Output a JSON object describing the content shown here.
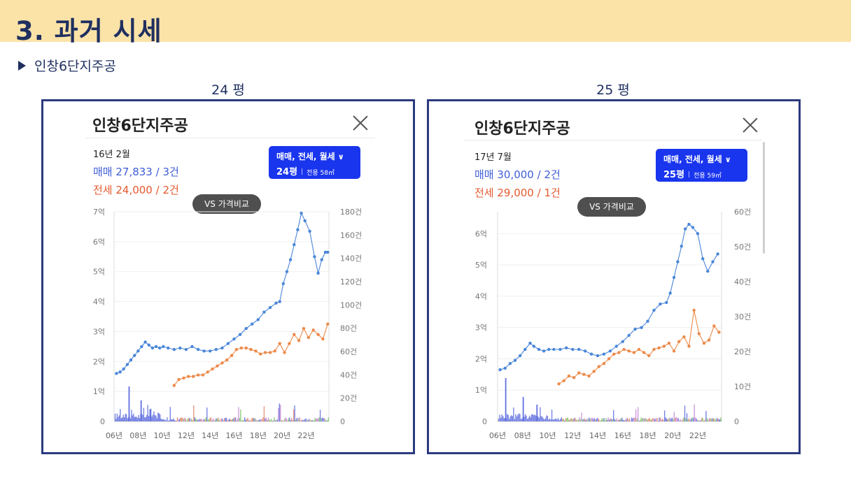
{
  "slide": {
    "title": "3. 과거 시세",
    "section_label": "인창6단지주공"
  },
  "panels": [
    {
      "pyeong_label": "24 평",
      "name": "인창6단지주공",
      "selected_date": "16년 2월",
      "sale_line": "매매 27,833 / 3건",
      "jeonse_line": "전세 24,000 / 2건",
      "filter": {
        "types": "매매, 전세, 월세",
        "pyeong": "24평",
        "area": "전용 58㎡"
      },
      "compare_button": "VS 가격비교"
    },
    {
      "pyeong_label": "25 평",
      "name": "인창6단지주공",
      "selected_date": "17년 7월",
      "sale_line": "매매 30,000 / 2건",
      "jeonse_line": "전세 29,000 / 1건",
      "filter": {
        "types": "매매, 전세, 월세",
        "pyeong": "25평",
        "area": "전용 59㎡"
      },
      "compare_button": "VS 가격비교"
    }
  ],
  "chart_data": [
    {
      "type": "line",
      "x_ticks": [
        "06년",
        "08년",
        "10년",
        "12년",
        "14년",
        "16년",
        "18년",
        "20년",
        "22년"
      ],
      "x_range": [
        2006,
        2023.9
      ],
      "y_left_ticks": [
        "0",
        "1억",
        "2억",
        "3억",
        "4억",
        "5억",
        "6억",
        "7억"
      ],
      "y_left_range": [
        0,
        7
      ],
      "y_right_ticks": [
        "0",
        "20건",
        "40건",
        "60건",
        "80건",
        "100건",
        "120건",
        "140건",
        "160건",
        "180건"
      ],
      "y_right_range": [
        0,
        180
      ],
      "colors": {
        "sale": "#4a86d8",
        "jeonse": "#ec8a4a",
        "volume": "#6270e0"
      },
      "series": [
        {
          "key": "sale",
          "points": [
            [
              2006.2,
              1.6
            ],
            [
              2006.5,
              1.65
            ],
            [
              2006.8,
              1.75
            ],
            [
              2007.1,
              1.9
            ],
            [
              2007.4,
              2.05
            ],
            [
              2007.7,
              2.2
            ],
            [
              2008.0,
              2.35
            ],
            [
              2008.3,
              2.5
            ],
            [
              2008.6,
              2.65
            ],
            [
              2008.9,
              2.55
            ],
            [
              2009.2,
              2.45
            ],
            [
              2009.5,
              2.5
            ],
            [
              2009.8,
              2.45
            ],
            [
              2010.1,
              2.5
            ],
            [
              2010.5,
              2.45
            ],
            [
              2011.0,
              2.4
            ],
            [
              2011.5,
              2.45
            ],
            [
              2012.0,
              2.4
            ],
            [
              2012.5,
              2.5
            ],
            [
              2013.0,
              2.4
            ],
            [
              2013.5,
              2.35
            ],
            [
              2014.0,
              2.35
            ],
            [
              2014.5,
              2.4
            ],
            [
              2015.0,
              2.45
            ],
            [
              2015.5,
              2.6
            ],
            [
              2016.0,
              2.75
            ],
            [
              2016.5,
              2.9
            ],
            [
              2017.0,
              3.1
            ],
            [
              2017.5,
              3.25
            ],
            [
              2018.0,
              3.4
            ],
            [
              2018.5,
              3.65
            ],
            [
              2019.0,
              3.8
            ],
            [
              2019.5,
              3.95
            ],
            [
              2019.8,
              4.0
            ],
            [
              2020.1,
              4.6
            ],
            [
              2020.4,
              5.0
            ],
            [
              2020.7,
              5.4
            ],
            [
              2021.0,
              5.9
            ],
            [
              2021.3,
              6.4
            ],
            [
              2021.6,
              6.95
            ],
            [
              2021.9,
              6.7
            ],
            [
              2022.3,
              6.35
            ],
            [
              2022.7,
              5.5
            ],
            [
              2023.0,
              4.95
            ],
            [
              2023.3,
              5.4
            ],
            [
              2023.6,
              5.65
            ],
            [
              2023.8,
              5.65
            ]
          ]
        },
        {
          "key": "jeonse",
          "points": [
            [
              2011.0,
              1.2
            ],
            [
              2011.4,
              1.4
            ],
            [
              2011.8,
              1.45
            ],
            [
              2012.2,
              1.5
            ],
            [
              2012.6,
              1.5
            ],
            [
              2013.0,
              1.55
            ],
            [
              2013.4,
              1.55
            ],
            [
              2013.8,
              1.65
            ],
            [
              2014.2,
              1.75
            ],
            [
              2014.6,
              1.85
            ],
            [
              2015.0,
              1.95
            ],
            [
              2015.4,
              2.05
            ],
            [
              2015.8,
              2.2
            ],
            [
              2016.2,
              2.4
            ],
            [
              2016.6,
              2.45
            ],
            [
              2017.0,
              2.45
            ],
            [
              2017.4,
              2.4
            ],
            [
              2017.8,
              2.35
            ],
            [
              2018.2,
              2.25
            ],
            [
              2018.6,
              2.3
            ],
            [
              2019.0,
              2.3
            ],
            [
              2019.4,
              2.35
            ],
            [
              2019.8,
              2.6
            ],
            [
              2020.2,
              2.3
            ],
            [
              2020.6,
              2.6
            ],
            [
              2021.0,
              2.9
            ],
            [
              2021.4,
              2.7
            ],
            [
              2021.8,
              3.1
            ],
            [
              2022.2,
              2.8
            ],
            [
              2022.6,
              3.05
            ],
            [
              2023.0,
              2.9
            ],
            [
              2023.4,
              2.75
            ],
            [
              2023.8,
              3.25
            ]
          ]
        }
      ]
    },
    {
      "type": "line",
      "x_ticks": [
        "06년",
        "08년",
        "10년",
        "12년",
        "14년",
        "16년",
        "18년",
        "20년",
        "22년"
      ],
      "x_range": [
        2006,
        2023.9
      ],
      "y_left_ticks": [
        "0",
        "1억",
        "2억",
        "3억",
        "4억",
        "5억",
        "6억"
      ],
      "y_left_range": [
        0,
        6.7
      ],
      "y_right_ticks": [
        "0",
        "10건",
        "20건",
        "30건",
        "40건",
        "50건",
        "60건"
      ],
      "y_right_range": [
        0,
        60
      ],
      "colors": {
        "sale": "#4a86d8",
        "jeonse": "#ec8a4a",
        "volume": "#6270e0"
      },
      "series": [
        {
          "key": "sale",
          "points": [
            [
              2006.2,
              1.65
            ],
            [
              2006.6,
              1.7
            ],
            [
              2007.0,
              1.85
            ],
            [
              2007.4,
              1.95
            ],
            [
              2007.8,
              2.1
            ],
            [
              2008.2,
              2.3
            ],
            [
              2008.6,
              2.5
            ],
            [
              2008.9,
              2.4
            ],
            [
              2009.3,
              2.3
            ],
            [
              2009.7,
              2.25
            ],
            [
              2010.1,
              2.3
            ],
            [
              2010.5,
              2.3
            ],
            [
              2011.0,
              2.3
            ],
            [
              2011.5,
              2.35
            ],
            [
              2012.0,
              2.3
            ],
            [
              2012.5,
              2.3
            ],
            [
              2013.0,
              2.25
            ],
            [
              2013.5,
              2.15
            ],
            [
              2014.0,
              2.1
            ],
            [
              2014.5,
              2.15
            ],
            [
              2015.0,
              2.25
            ],
            [
              2015.5,
              2.4
            ],
            [
              2016.0,
              2.55
            ],
            [
              2016.5,
              2.75
            ],
            [
              2017.0,
              2.95
            ],
            [
              2017.5,
              3.0
            ],
            [
              2018.0,
              3.2
            ],
            [
              2018.5,
              3.55
            ],
            [
              2019.0,
              3.75
            ],
            [
              2019.5,
              3.8
            ],
            [
              2019.8,
              4.1
            ],
            [
              2020.1,
              4.6
            ],
            [
              2020.4,
              5.1
            ],
            [
              2020.7,
              5.6
            ],
            [
              2021.0,
              6.15
            ],
            [
              2021.3,
              6.3
            ],
            [
              2021.6,
              6.2
            ],
            [
              2022.0,
              6.0
            ],
            [
              2022.4,
              5.2
            ],
            [
              2022.8,
              4.8
            ],
            [
              2023.2,
              5.1
            ],
            [
              2023.6,
              5.35
            ]
          ]
        },
        {
          "key": "jeonse",
          "points": [
            [
              2010.9,
              1.2
            ],
            [
              2011.3,
              1.3
            ],
            [
              2011.7,
              1.45
            ],
            [
              2012.1,
              1.4
            ],
            [
              2012.5,
              1.55
            ],
            [
              2012.9,
              1.5
            ],
            [
              2013.3,
              1.45
            ],
            [
              2013.7,
              1.6
            ],
            [
              2014.1,
              1.75
            ],
            [
              2014.5,
              1.85
            ],
            [
              2014.9,
              2.0
            ],
            [
              2015.3,
              2.15
            ],
            [
              2015.7,
              2.2
            ],
            [
              2016.1,
              2.3
            ],
            [
              2016.5,
              2.25
            ],
            [
              2016.9,
              2.2
            ],
            [
              2017.3,
              2.3
            ],
            [
              2017.7,
              2.2
            ],
            [
              2018.1,
              2.1
            ],
            [
              2018.5,
              2.3
            ],
            [
              2018.9,
              2.35
            ],
            [
              2019.3,
              2.4
            ],
            [
              2019.7,
              2.5
            ],
            [
              2020.1,
              2.25
            ],
            [
              2020.5,
              2.55
            ],
            [
              2020.9,
              2.7
            ],
            [
              2021.3,
              2.4
            ],
            [
              2021.7,
              3.55
            ],
            [
              2022.1,
              2.8
            ],
            [
              2022.5,
              2.5
            ],
            [
              2022.9,
              2.6
            ],
            [
              2023.3,
              3.05
            ],
            [
              2023.7,
              2.85
            ]
          ]
        }
      ]
    }
  ]
}
